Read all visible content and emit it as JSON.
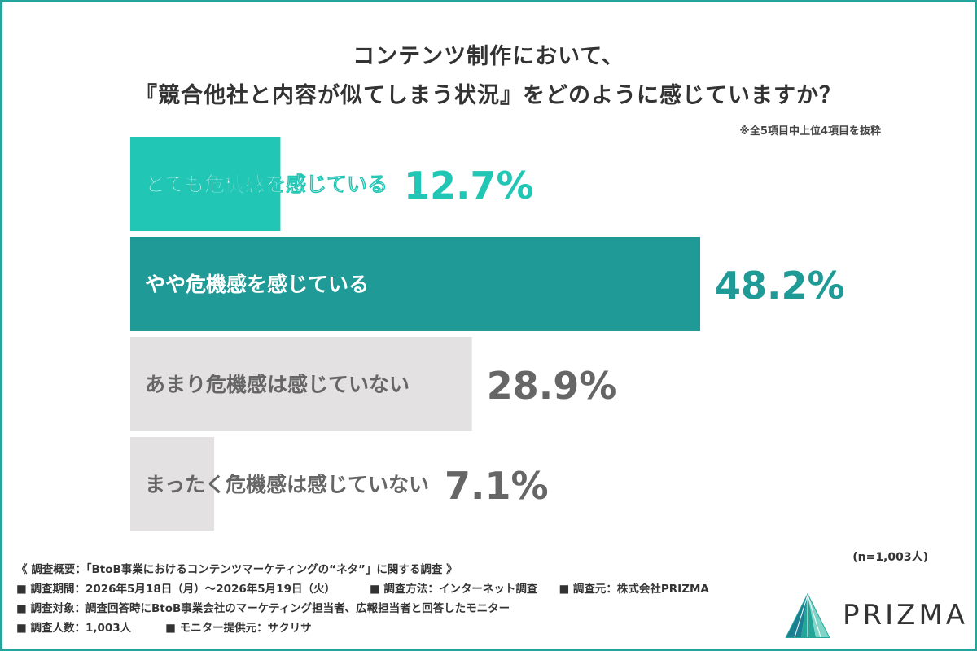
{
  "title_line1": "コンテンツ制作において、",
  "title_line2": "『競合他社と内容が似てしまう状況』をどのように感じていますか？",
  "note": "※全5項目中上位4項目を抜粋",
  "n_label": "(n=1,003人)",
  "chart_data": {
    "type": "bar",
    "orientation": "horizontal",
    "categories": [
      "とても危機感を感じている",
      "やや危機感を感じている",
      "あまり危機感は感じていない",
      "まったく危機感は感じていない"
    ],
    "values": [
      12.7,
      48.2,
      28.9,
      7.1
    ],
    "value_labels": [
      "12.7%",
      "48.2%",
      "28.9%",
      "7.1%"
    ],
    "unit": "%",
    "xlim": [
      0,
      50
    ],
    "grid": false,
    "bar_colors": [
      "#22c6b4",
      "#1f9a96",
      "#e4e1e2",
      "#e4e1e2"
    ],
    "label_colors": [
      "#ffffff",
      "#ffffff",
      "#666666",
      "#666666"
    ],
    "value_colors": [
      "#22c6b4",
      "#1f9a96",
      "#666666",
      "#666666"
    ]
  },
  "footer": {
    "summary": "《 調査概要：「BtoB事業におけるコンテンツマーケティングの“ネタ”」に関する調査 》",
    "period": "■ 調査期間：2026年5月18日（月）～2026年5月19日（火）",
    "method": "■ 調査方法：インターネット調査",
    "source": "■ 調査元：株式会社PRIZMA",
    "target": "■ 調査対象：調査回答時にBtoB事業会社のマーケティング担当者、広報担当者と回答したモニター",
    "count": "■ 調査人数：1,003人",
    "provider": "■ モニター提供元：サクリサ"
  },
  "logo": {
    "text": "PRIZMA",
    "colors": [
      "#1b7f92",
      "#23a59a",
      "#7fd6c8"
    ]
  }
}
